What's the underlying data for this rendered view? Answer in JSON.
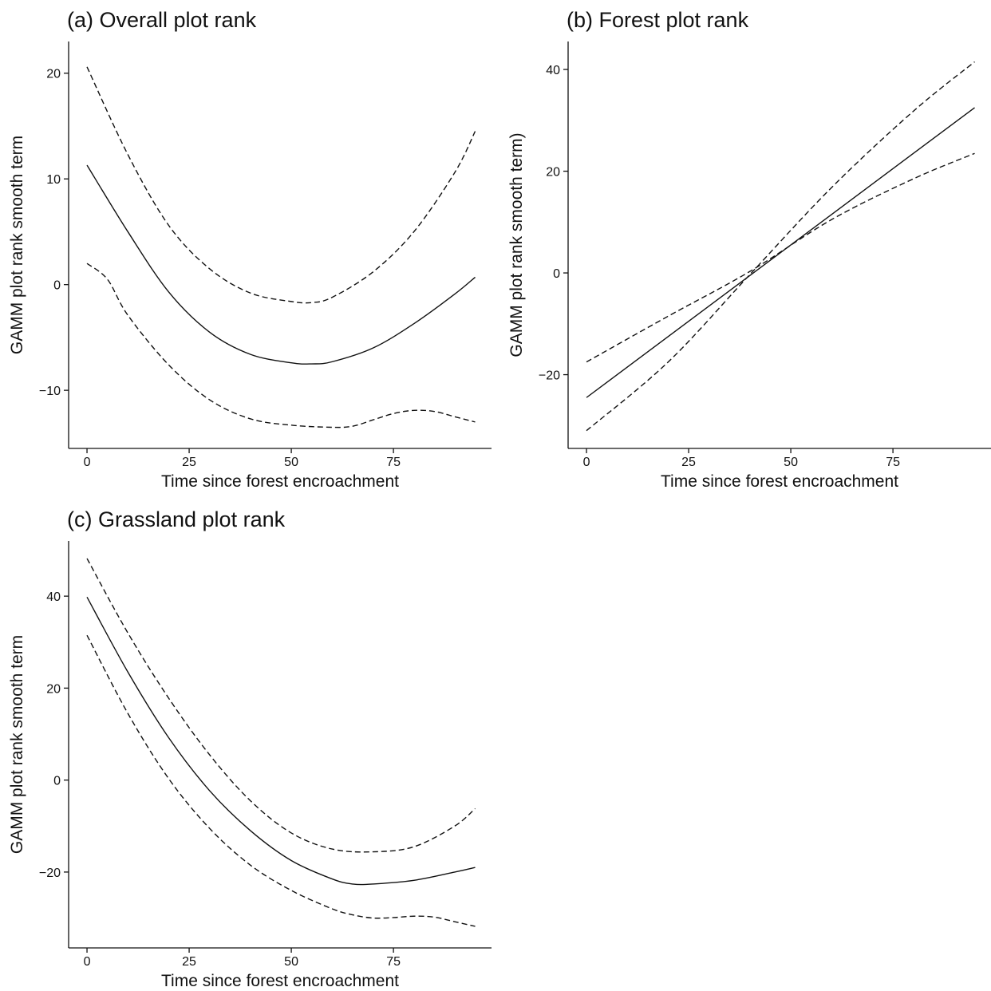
{
  "chart_data": [
    {
      "type": "line",
      "title": "(a) Overall plot rank",
      "xlabel": "Time since forest encroachment",
      "ylabel": "GAMM plot rank smooth term",
      "xlim": [
        -4.5,
        99
      ],
      "ylim": [
        -15.5,
        23
      ],
      "x_ticks": [
        0,
        25,
        50,
        75
      ],
      "x_tick_labels": [
        "0",
        "25",
        "50",
        "75"
      ],
      "y_ticks": [
        -10,
        0,
        10,
        20
      ],
      "y_tick_labels": [
        "−10",
        "0",
        "10",
        "20"
      ],
      "grid": false,
      "series": [
        {
          "style": "solid",
          "x": [
            0,
            10,
            20,
            30,
            40,
            50,
            55,
            60,
            70,
            80,
            90,
            95
          ],
          "y": [
            11.3,
            5.0,
            -0.7,
            -4.5,
            -6.6,
            -7.4,
            -7.5,
            -7.3,
            -6.0,
            -3.7,
            -0.9,
            0.7
          ]
        },
        {
          "style": "dashed",
          "x": [
            0,
            10,
            20,
            30,
            40,
            50,
            55,
            60,
            70,
            80,
            90,
            95
          ],
          "y": [
            20.6,
            12.3,
            5.6,
            1.5,
            -0.8,
            -1.6,
            -1.7,
            -1.2,
            1.2,
            5.0,
            10.6,
            14.5
          ]
        },
        {
          "style": "dashed",
          "x": [
            0,
            5,
            10,
            20,
            30,
            40,
            50,
            60,
            65,
            70,
            75,
            80,
            85,
            90,
            95
          ],
          "y": [
            2.0,
            0.5,
            -2.9,
            -7.6,
            -10.9,
            -12.7,
            -13.3,
            -13.5,
            -13.4,
            -12.8,
            -12.2,
            -11.9,
            -12.0,
            -12.5,
            -13.0
          ]
        }
      ]
    },
    {
      "type": "line",
      "title": "(b) Forest plot rank",
      "xlabel": "Time since forest encroachment",
      "ylabel": "GAMM plot rank smooth term)",
      "xlim": [
        -4.5,
        99
      ],
      "ylim": [
        -34.5,
        45.5
      ],
      "x_ticks": [
        0,
        25,
        50,
        75
      ],
      "x_tick_labels": [
        "0",
        "25",
        "50",
        "75"
      ],
      "y_ticks": [
        -20,
        0,
        20,
        40
      ],
      "y_tick_labels": [
        "−20",
        "0",
        "20",
        "40"
      ],
      "grid": false,
      "series": [
        {
          "style": "solid",
          "x": [
            0,
            95
          ],
          "y": [
            -24.5,
            32.5
          ]
        },
        {
          "style": "dashed",
          "x": [
            0,
            20,
            40,
            60,
            80,
            95
          ],
          "y": [
            -31.0,
            -17.5,
            -0.3,
            16.8,
            31.8,
            41.5
          ]
        },
        {
          "style": "dashed",
          "x": [
            0,
            20,
            40,
            60,
            80,
            95
          ],
          "y": [
            -17.5,
            -8.5,
            0.3,
            10.5,
            18.5,
            23.5
          ]
        }
      ]
    },
    {
      "type": "line",
      "title": "(c) Grassland plot rank",
      "xlabel": "Time since forest encroachment",
      "ylabel": "GAMM plot rank smooth term",
      "xlim": [
        -4.5,
        99
      ],
      "ylim": [
        -36.5,
        52
      ],
      "x_ticks": [
        0,
        25,
        50,
        75
      ],
      "x_tick_labels": [
        "0",
        "25",
        "50",
        "75"
      ],
      "y_ticks": [
        -20,
        0,
        20,
        40
      ],
      "y_tick_labels": [
        "−20",
        "0",
        "20",
        "40"
      ],
      "grid": false,
      "series": [
        {
          "style": "solid",
          "x": [
            0,
            10,
            20,
            30,
            40,
            50,
            60,
            65,
            70,
            80,
            90,
            95
          ],
          "y": [
            39.8,
            23.5,
            9.2,
            -2.3,
            -11.0,
            -17.5,
            -21.5,
            -22.6,
            -22.6,
            -21.8,
            -20.0,
            -19.0
          ]
        },
        {
          "style": "dashed",
          "x": [
            0,
            10,
            20,
            30,
            40,
            50,
            60,
            70,
            80,
            90,
            95
          ],
          "y": [
            48.2,
            32.0,
            17.8,
            5.5,
            -4.5,
            -11.5,
            -15.0,
            -15.6,
            -14.5,
            -10.0,
            -6.2
          ]
        },
        {
          "style": "dashed",
          "x": [
            0,
            10,
            20,
            30,
            40,
            50,
            60,
            65,
            70,
            75,
            80,
            85,
            90,
            95
          ],
          "y": [
            31.5,
            14.5,
            0.3,
            -10.5,
            -18.5,
            -24.0,
            -28.0,
            -29.3,
            -30.0,
            -29.9,
            -29.6,
            -29.8,
            -30.8,
            -31.8
          ]
        }
      ]
    }
  ]
}
